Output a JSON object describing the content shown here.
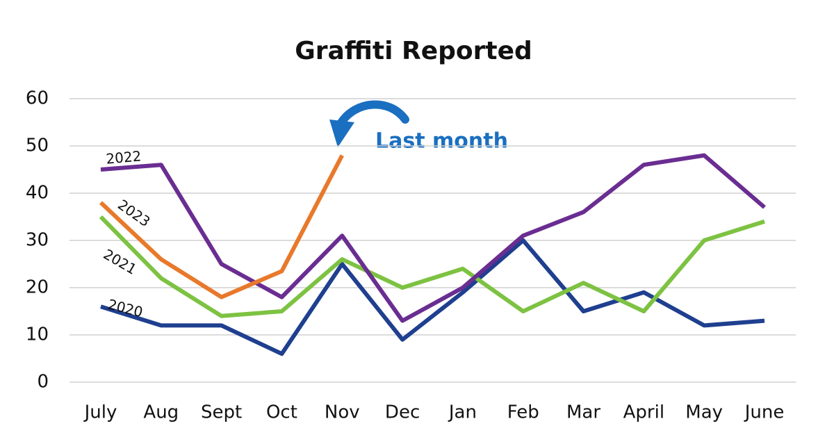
{
  "chart_data": {
    "type": "line",
    "title": "Graffiti Reported",
    "categories": [
      "July",
      "Aug",
      "Sept",
      "Oct",
      "Nov",
      "Dec",
      "Jan",
      "Feb",
      "Mar",
      "April",
      "May",
      "June"
    ],
    "series": [
      {
        "name": "2020",
        "color": "#1f3f8f",
        "values": [
          16,
          12,
          12,
          6,
          25,
          9,
          19,
          30,
          15,
          19,
          12,
          13
        ]
      },
      {
        "name": "2021",
        "color": "#7dc242",
        "values": [
          35,
          22,
          14,
          15,
          26,
          20,
          24,
          15,
          21,
          15,
          30,
          34
        ]
      },
      {
        "name": "2022",
        "color": "#6a2d91",
        "values": [
          45,
          46,
          25,
          18,
          31,
          13,
          20,
          31,
          36,
          46,
          48,
          37
        ]
      },
      {
        "name": "2023",
        "color": "#e8792b",
        "values": [
          38,
          26,
          18,
          23.5,
          48,
          null,
          null,
          null,
          null,
          null,
          null,
          null
        ]
      }
    ],
    "annotation": "Last month",
    "ylim": [
      0,
      60
    ],
    "yticks": [
      0,
      10,
      20,
      30,
      40,
      50,
      60
    ],
    "grid": true
  }
}
